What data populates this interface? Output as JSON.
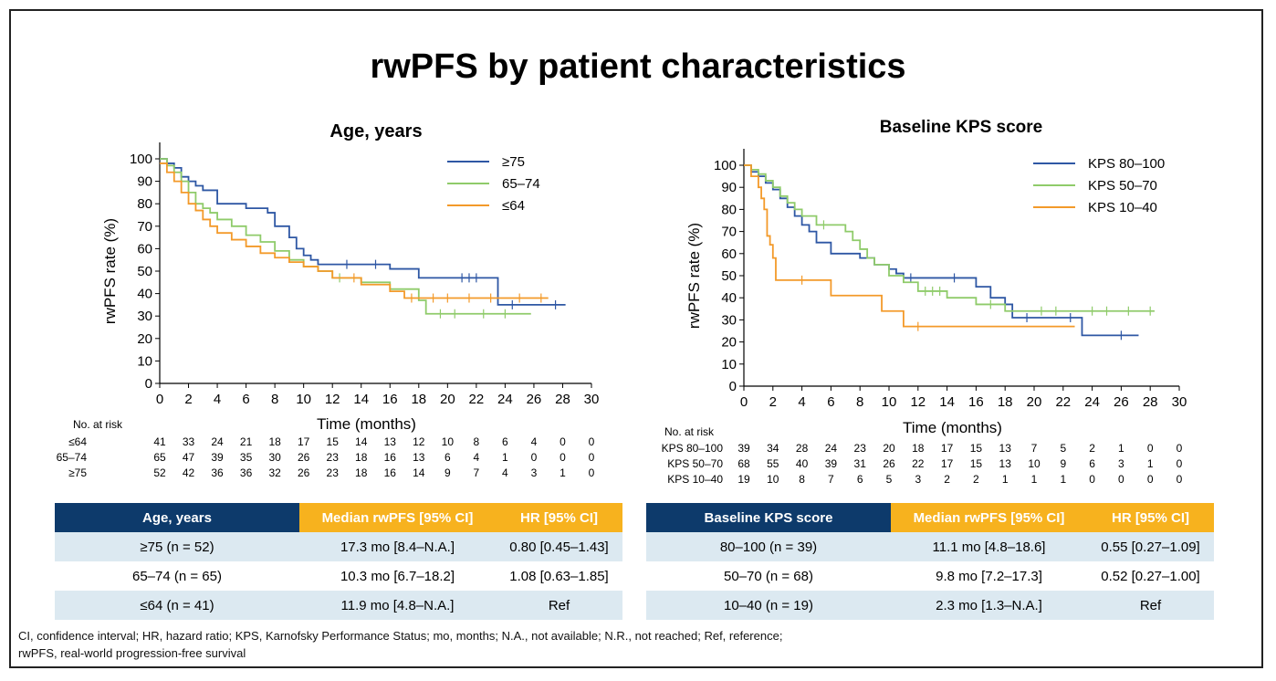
{
  "slide": {
    "title": "rwPFS by patient characteristics"
  },
  "chart_data": [
    {
      "type": "line",
      "title": "Age, years",
      "xlabel": "Time (months)",
      "ylabel": "rwPFS rate (%)",
      "xlim": [
        0,
        30
      ],
      "ylim": [
        0,
        100
      ],
      "xticks": [
        0,
        2,
        4,
        6,
        8,
        10,
        12,
        14,
        16,
        18,
        20,
        22,
        24,
        26,
        28,
        30
      ],
      "yticks": [
        0,
        10,
        20,
        30,
        40,
        50,
        60,
        70,
        80,
        90,
        100
      ],
      "legend_position": "top-right",
      "series": [
        {
          "name": "≥75",
          "color": "#2e57a4",
          "x": [
            0,
            0.5,
            1,
            1.5,
            2,
            2.5,
            3,
            4,
            6,
            7.5,
            8,
            9,
            9.5,
            10,
            10.5,
            11,
            16,
            18,
            23.5,
            28.2
          ],
          "y": [
            100,
            98,
            96,
            92,
            90,
            88,
            86,
            80,
            78,
            76,
            70,
            65,
            60,
            57,
            55,
            53,
            51,
            47,
            35,
            35
          ],
          "censor": [
            [
              13,
              53
            ],
            [
              15,
              53
            ],
            [
              21,
              47
            ],
            [
              21.5,
              47
            ],
            [
              22,
              47
            ],
            [
              24.5,
              35
            ],
            [
              27.5,
              35
            ]
          ]
        },
        {
          "name": "65–74",
          "color": "#8fcb6a",
          "x": [
            0,
            0.5,
            1,
            1.5,
            2,
            2.5,
            3,
            3.5,
            4,
            5,
            6,
            7,
            8,
            9,
            10,
            11,
            12,
            14,
            16,
            18,
            18.5,
            25.8
          ],
          "y": [
            100,
            97,
            94,
            90,
            85,
            80,
            78,
            76,
            73,
            70,
            66,
            63,
            59,
            55,
            52,
            50,
            47,
            45,
            42,
            37,
            31,
            31
          ],
          "censor": [
            [
              12.5,
              47
            ],
            [
              19.5,
              31
            ],
            [
              20.5,
              31
            ],
            [
              22.5,
              31
            ],
            [
              24,
              31
            ]
          ]
        },
        {
          "name": "≤64",
          "color": "#f39a2a",
          "x": [
            0,
            0.5,
            1,
            1.5,
            2,
            2.5,
            3,
            3.5,
            4,
            5,
            6,
            7,
            8,
            9,
            10,
            11,
            12,
            14,
            16,
            17,
            27
          ],
          "y": [
            98,
            94,
            90,
            85,
            80,
            77,
            73,
            70,
            67,
            64,
            61,
            58,
            56,
            54,
            52,
            50,
            47,
            44,
            41,
            38,
            38
          ],
          "censor": [
            [
              13.5,
              47
            ],
            [
              17.5,
              38
            ],
            [
              19,
              38
            ],
            [
              20,
              38
            ],
            [
              21.5,
              38
            ],
            [
              23,
              38
            ],
            [
              25,
              38
            ],
            [
              26.5,
              38
            ]
          ]
        }
      ],
      "risk_table": {
        "label": "No. at risk",
        "rows": [
          {
            "label": "≤64",
            "values": [
              41,
              33,
              24,
              21,
              18,
              17,
              15,
              14,
              13,
              12,
              10,
              8,
              6,
              4,
              0,
              0
            ]
          },
          {
            "label": "65–74",
            "values": [
              65,
              47,
              39,
              35,
              30,
              26,
              23,
              18,
              16,
              13,
              6,
              4,
              1,
              0,
              0,
              0
            ]
          },
          {
            "label": "≥75",
            "values": [
              52,
              42,
              36,
              36,
              32,
              26,
              23,
              18,
              16,
              14,
              9,
              7,
              4,
              3,
              1,
              0
            ]
          }
        ]
      }
    },
    {
      "type": "line",
      "title": "Baseline KPS score",
      "xlabel": "Time (months)",
      "ylabel": "rwPFS rate (%)",
      "xlim": [
        0,
        30
      ],
      "ylim": [
        0,
        100
      ],
      "xticks": [
        0,
        2,
        4,
        6,
        8,
        10,
        12,
        14,
        16,
        18,
        20,
        22,
        24,
        26,
        28,
        30
      ],
      "yticks": [
        0,
        10,
        20,
        30,
        40,
        50,
        60,
        70,
        80,
        90,
        100
      ],
      "legend_position": "top-right",
      "series": [
        {
          "name": "KPS 80–100",
          "color": "#2e57a4",
          "x": [
            0,
            0.5,
            1,
            1.5,
            2,
            2.5,
            3,
            3.5,
            4,
            4.5,
            5,
            6,
            8,
            9,
            10,
            10.5,
            11,
            16,
            17,
            18,
            18.5,
            23.3,
            27.2
          ],
          "y": [
            100,
            97,
            95,
            92,
            89,
            85,
            81,
            77,
            73,
            70,
            65,
            60,
            58,
            55,
            53,
            51,
            49,
            45,
            40,
            37,
            31,
            23,
            23
          ],
          "censor": [
            [
              11.5,
              49
            ],
            [
              14.5,
              49
            ],
            [
              19.5,
              31
            ],
            [
              22.5,
              31
            ],
            [
              26,
              23
            ]
          ]
        },
        {
          "name": "KPS 50–70",
          "color": "#8fcb6a",
          "x": [
            0,
            0.5,
            1,
            1.5,
            2,
            2.5,
            3,
            3.5,
            4,
            5,
            7,
            7.5,
            8,
            8.5,
            9,
            10,
            11,
            12,
            14,
            16,
            18,
            20,
            28.3
          ],
          "y": [
            100,
            98,
            96,
            93,
            90,
            86,
            83,
            80,
            77,
            73,
            70,
            66,
            62,
            58,
            55,
            50,
            47,
            43,
            40,
            37,
            34,
            34,
            34
          ],
          "censor": [
            [
              5.5,
              73
            ],
            [
              12.5,
              43
            ],
            [
              13,
              43
            ],
            [
              13.5,
              43
            ],
            [
              17,
              37
            ],
            [
              20.5,
              34
            ],
            [
              21.5,
              34
            ],
            [
              24,
              34
            ],
            [
              25,
              34
            ],
            [
              26.5,
              34
            ],
            [
              28,
              34
            ]
          ]
        },
        {
          "name": "KPS 10–40",
          "color": "#f39a2a",
          "x": [
            0,
            0.5,
            1,
            1.2,
            1.4,
            1.6,
            1.8,
            2,
            2.2,
            6,
            9.5,
            11,
            22.8
          ],
          "y": [
            100,
            95,
            90,
            85,
            80,
            68,
            64,
            58,
            48,
            41,
            34,
            27,
            27
          ],
          "censor": [
            [
              4,
              48
            ],
            [
              12,
              27
            ]
          ]
        }
      ],
      "risk_table": {
        "label": "No. at risk",
        "rows": [
          {
            "label": "KPS 80–100",
            "values": [
              39,
              34,
              28,
              24,
              23,
              20,
              18,
              17,
              15,
              13,
              7,
              5,
              2,
              1,
              0,
              0
            ]
          },
          {
            "label": "KPS 50–70",
            "values": [
              68,
              55,
              40,
              39,
              31,
              26,
              22,
              17,
              15,
              13,
              10,
              9,
              6,
              3,
              1,
              0
            ]
          },
          {
            "label": "KPS 10–40",
            "values": [
              19,
              10,
              8,
              7,
              6,
              5,
              3,
              2,
              2,
              1,
              1,
              1,
              0,
              0,
              0,
              0
            ]
          }
        ]
      }
    }
  ],
  "summary_tables": [
    {
      "headers": [
        "Age, years",
        "Median rwPFS [95% CI]",
        "HR [95% CI]"
      ],
      "rows": [
        [
          "≥75 (n = 52)",
          "17.3 mo [8.4–N.A.]",
          "0.80 [0.45–1.43]"
        ],
        [
          "65–74 (n = 65)",
          "10.3 mo [6.7–18.2]",
          "1.08 [0.63–1.85]"
        ],
        [
          "≤64 (n = 41)",
          "11.9 mo [4.8–N.A.]",
          "Ref"
        ]
      ]
    },
    {
      "headers": [
        "Baseline KPS score",
        "Median rwPFS [95% CI]",
        "HR [95% CI]"
      ],
      "rows": [
        [
          "80–100 (n = 39)",
          "11.1 mo [4.8–18.6]",
          "0.55 [0.27–1.09]"
        ],
        [
          "50–70 (n = 68)",
          "9.8 mo [7.2–17.3]",
          "0.52 [0.27–1.00]"
        ],
        [
          "10–40 (n = 19)",
          "2.3 mo [1.3–N.A.]",
          "Ref"
        ]
      ]
    }
  ],
  "footnote": {
    "line1": "CI, confidence interval; HR, hazard ratio; KPS, Karnofsky Performance Status; mo, months; N.A., not available; N.R., not reached; Ref, reference;",
    "line2": "rwPFS, real-world progression-free survival"
  }
}
